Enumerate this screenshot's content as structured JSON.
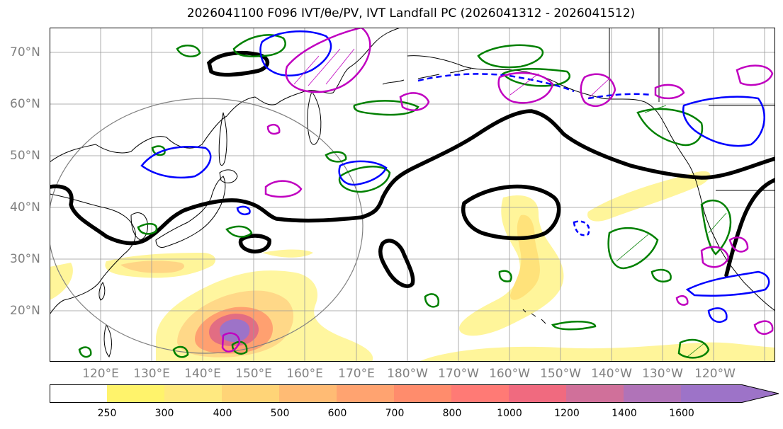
{
  "title": "2026041100 F096 IVT/θe/PV, IVT Landfall PC (2026041312 - 2026041512)",
  "latitude_labels": [
    "70°N",
    "60°N",
    "50°N",
    "40°N",
    "30°N",
    "20°N"
  ],
  "longitude_labels": [
    "120°E",
    "130°E",
    "140°E",
    "150°E",
    "160°E",
    "170°E",
    "180°W",
    "170°W",
    "160°W",
    "150°W",
    "140°W",
    "130°W",
    "120°W"
  ],
  "colorbar": {
    "ticks": [
      "250",
      "300",
      "400",
      "500",
      "600",
      "700",
      "800",
      "1000",
      "1200",
      "1400",
      "1600"
    ],
    "colors": [
      "#ffffff",
      "#fff36b",
      "#ffe980",
      "#ffd477",
      "#ffbb74",
      "#ffa370",
      "#ff8c6c",
      "#ff7a75",
      "#f06a7f",
      "#d0709a",
      "#b073b8",
      "#9d73c8"
    ]
  },
  "colors": {
    "ivt_low": "#fff36b",
    "ivt_high": "#9d73c8",
    "theta_e_contour": "#000000",
    "green_contour": "#008000",
    "blue_contour": "#0000ff",
    "magenta_contour": "#c000c0",
    "landfall_circle": "#808080",
    "grid": "#999999",
    "coast": "#000000"
  }
}
